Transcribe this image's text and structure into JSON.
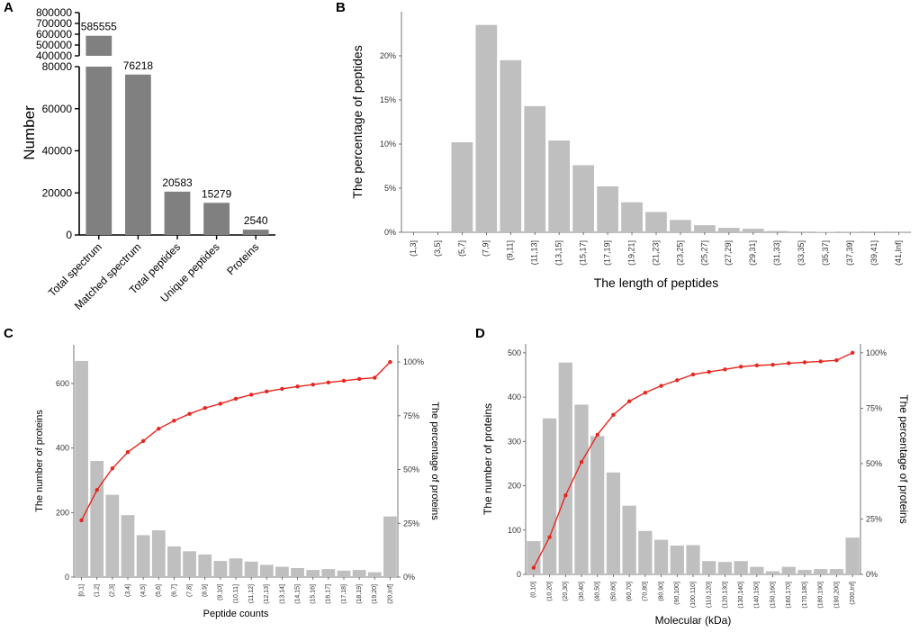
{
  "colors": {
    "bar_dark": "#808080",
    "bar_light": "#bfbfbf",
    "line": "#e8261f",
    "axis": "#000000"
  },
  "chart_data": [
    {
      "panel": "A",
      "type": "bar",
      "title": "",
      "ylabel": "Number",
      "xlabel": "",
      "categories": [
        "Total spectrum",
        "Matched spectrum",
        "Total peptides",
        "Unique peptides",
        "Proteins"
      ],
      "values": [
        585555,
        76218,
        20583,
        15279,
        2540
      ],
      "value_labels": [
        "585555",
        "76218",
        "20583",
        "15279",
        "2540"
      ],
      "broken_axis": true,
      "ylim_lower": [
        0,
        80000
      ],
      "ylim_upper": [
        400000,
        800000
      ],
      "yticks_lower": [
        "0",
        "20000",
        "40000",
        "60000",
        "80000"
      ],
      "yticks_upper": [
        "400000",
        "500000",
        "600000",
        "700000",
        "800000"
      ]
    },
    {
      "panel": "B",
      "type": "bar",
      "title": "",
      "xlabel": "The length of peptides",
      "ylabel": "The percentage of peptides",
      "categories": [
        "(1,3]",
        "(3,5]",
        "(5,7]",
        "(7,9]",
        "(9,11]",
        "(11,13]",
        "(13,15]",
        "(15,17]",
        "(17,19]",
        "(19,21]",
        "(21,23]",
        "(23,25]",
        "(25,27]",
        "(27,29]",
        "(29,31]",
        "(31,33]",
        "(33,35]",
        "(35,37]",
        "(37,39]",
        "(39,41]",
        "(41,Inf]"
      ],
      "values": [
        0,
        0,
        10.2,
        23.5,
        19.5,
        14.3,
        10.4,
        7.6,
        5.2,
        3.4,
        2.3,
        1.4,
        0.8,
        0.5,
        0.4,
        0.15,
        0.08,
        0.05,
        0.03,
        0.02,
        0.02
      ],
      "ylim": [
        0,
        25
      ],
      "yticks": [
        "0%",
        "5%",
        "10%",
        "15%",
        "20%"
      ]
    },
    {
      "panel": "C",
      "type": "bar+line",
      "title": "",
      "xlabel": "Peptide counts",
      "ylabel": "The number of proteins",
      "ylabel_right": "The percentage of proteins",
      "categories": [
        "[0,1]",
        "(1,2]",
        "(2,3]",
        "(3,4]",
        "(4,5]",
        "(5,6]",
        "(6,7]",
        "(7,8]",
        "(8,9]",
        "(9,10]",
        "(10,11]",
        "(11,12]",
        "(12,13]",
        "(13,14]",
        "(14,15]",
        "(15,16]",
        "(16,17]",
        "(17,18]",
        "(18,19]",
        "(19,20]",
        "(20,Inf]"
      ],
      "values": [
        670,
        360,
        255,
        192,
        130,
        145,
        95,
        80,
        70,
        50,
        58,
        48,
        38,
        32,
        28,
        22,
        25,
        20,
        22,
        15,
        188
      ],
      "cumulative_percent": [
        26.4,
        40.5,
        50.5,
        58.1,
        63.3,
        69.0,
        72.7,
        75.9,
        78.6,
        80.6,
        82.9,
        84.8,
        86.3,
        87.5,
        88.6,
        89.5,
        90.5,
        91.3,
        92.1,
        92.7,
        100
      ],
      "ylim": [
        0,
        720
      ],
      "yticks": [
        "0",
        "200",
        "400",
        "600"
      ],
      "ylim_right": [
        0,
        108
      ],
      "yticks_right": [
        "0%",
        "25%",
        "50%",
        "75%",
        "100%"
      ]
    },
    {
      "panel": "D",
      "type": "bar+line",
      "title": "",
      "xlabel": "Molecular (kDa)",
      "ylabel": "The number of proteins",
      "ylabel_right": "The percentage of proteins",
      "categories": [
        "(0,10]",
        "(10,20]",
        "(20,30]",
        "(30,40]",
        "(40,50]",
        "(50,60]",
        "(60,70]",
        "(70,80]",
        "(80,90]",
        "(90,100]",
        "(100,110]",
        "(110,120]",
        "(120,130]",
        "(130,140]",
        "(140,150]",
        "(150,160]",
        "(160,170]",
        "(170,180]",
        "(180,190]",
        "(190,200]",
        "(200,Inf]"
      ],
      "values": [
        75,
        352,
        478,
        383,
        312,
        230,
        155,
        98,
        78,
        65,
        66,
        30,
        28,
        30,
        17,
        7,
        17,
        10,
        12,
        12,
        83
      ],
      "cumulative_percent": [
        3.0,
        16.8,
        35.6,
        50.7,
        63.0,
        72.0,
        78.1,
        82.0,
        85.1,
        87.6,
        90.2,
        91.4,
        92.5,
        93.7,
        94.3,
        94.6,
        95.3,
        95.7,
        96.1,
        96.6,
        100
      ],
      "ylim": [
        0,
        520
      ],
      "yticks": [
        "0",
        "100",
        "200",
        "300",
        "400",
        "500"
      ],
      "ylim_right": [
        0,
        104
      ],
      "yticks_right": [
        "0%",
        "25%",
        "50%",
        "75%",
        "100%"
      ]
    }
  ],
  "panel_labels": {
    "a": "A",
    "b": "B",
    "c": "C",
    "d": "D"
  }
}
